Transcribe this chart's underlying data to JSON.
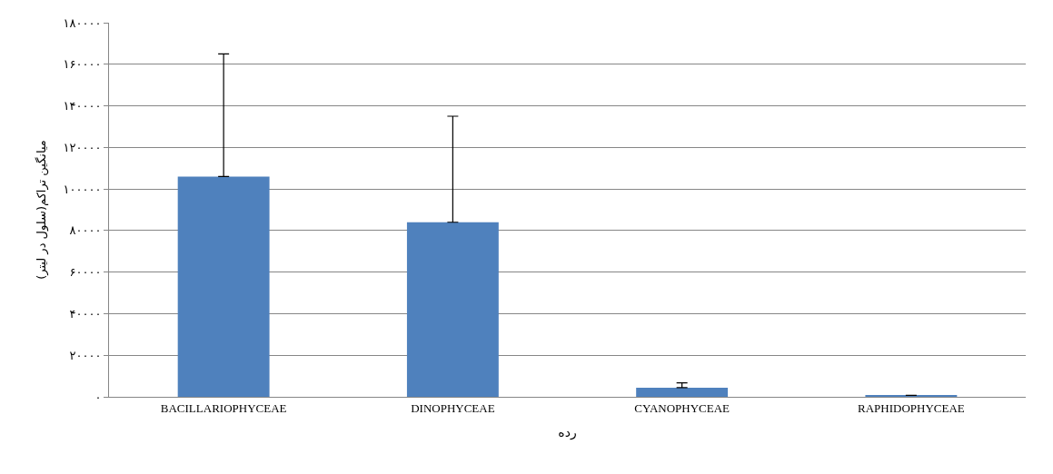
{
  "chart_data": {
    "type": "bar",
    "xlabel": "رده",
    "ylabel": "میانگین تراکم(سلول در لیتر)",
    "categories": [
      "BACILLARIOPHYCEAE",
      "DINOPHYCEAE",
      "CYANOPHYCEAE",
      "RAPHIDOPHYCEAE"
    ],
    "values": [
      106000,
      84000,
      4400,
      700
    ],
    "errors": [
      [
        106000,
        165000
      ],
      [
        84000,
        135000
      ],
      [
        4400,
        6700
      ],
      null
    ],
    "color": "#4f81bd",
    "ylim": [
      0,
      180000
    ],
    "yticks": [
      {
        "value": 0,
        "label": "۰"
      },
      {
        "value": 20000,
        "label": "۲۰۰۰۰"
      },
      {
        "value": 40000,
        "label": "۴۰۰۰۰"
      },
      {
        "value": 60000,
        "label": "۶۰۰۰۰"
      },
      {
        "value": 80000,
        "label": "۸۰۰۰۰"
      },
      {
        "value": 100000,
        "label": "۱۰۰۰۰۰"
      },
      {
        "value": 120000,
        "label": "۱۲۰۰۰۰"
      },
      {
        "value": 140000,
        "label": "۱۴۰۰۰۰"
      },
      {
        "value": 160000,
        "label": "۱۶۰۰۰۰"
      },
      {
        "value": 180000,
        "label": "۱۸۰۰۰۰"
      }
    ],
    "grid": "y"
  }
}
